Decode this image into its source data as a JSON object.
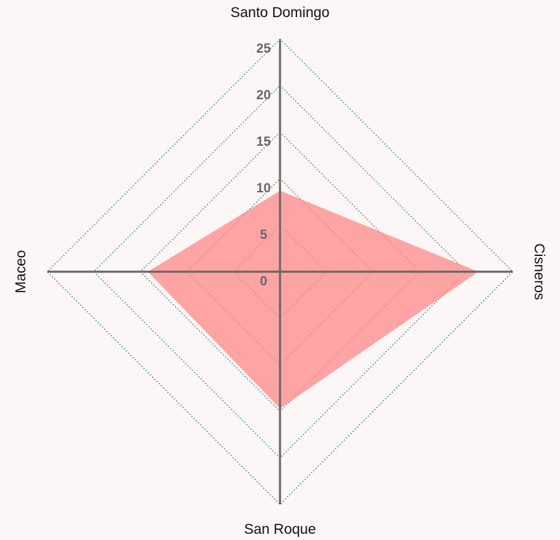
{
  "chart_data": {
    "type": "radar",
    "categories": [
      "Santo Domingo",
      "Cisneros",
      "San Roque",
      "Maceo"
    ],
    "series": [
      {
        "color": "#f88",
        "values": [
          8.7,
          21.3,
          14.7,
          14.2
        ]
      }
    ],
    "ylim": [
      0,
      25
    ],
    "yticks": [
      0,
      5,
      10,
      15,
      20,
      25
    ],
    "grid": true
  }
}
